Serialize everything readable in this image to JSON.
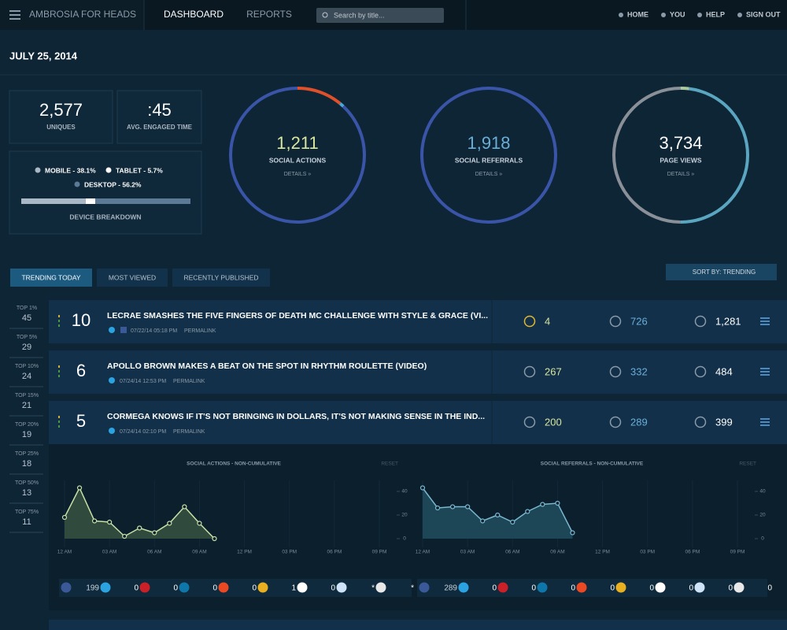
{
  "nav": {
    "brand": "AMBROSIA FOR HEADS",
    "tabs": [
      "DASHBOARD",
      "REPORTS"
    ],
    "search": "Search by title...",
    "links": [
      "HOME",
      "YOU",
      "HELP",
      "SIGN OUT"
    ]
  },
  "date": "JULY 25, 2014",
  "stats": [
    {
      "value": "2,577",
      "label": "UNIQUES"
    },
    {
      "value": ":45",
      "label": "AVG. ENGAGED TIME"
    }
  ],
  "device": {
    "title": "DEVICE BREAKDOWN",
    "items": [
      {
        "label": "MOBILE - 38.1%",
        "value": 38.1,
        "color": "#a9b8c6"
      },
      {
        "label": "TABLET - 5.7%",
        "value": 5.7,
        "color": "#ffffff"
      },
      {
        "label": "DESKTOP - 56.2%",
        "value": 56.2,
        "color": "#5c7a96"
      }
    ]
  },
  "rings": [
    {
      "value": "1,211",
      "label": "SOCIAL ACTIONS",
      "link": "DETAILS »",
      "color": "#d8e6a0",
      "segments": [
        {
          "value": 11,
          "color": "#e0502a"
        },
        {
          "value": 1,
          "color": "#4aa8d8"
        },
        {
          "value": 88,
          "color": "#3a55a8"
        }
      ]
    },
    {
      "value": "1,918",
      "label": "SOCIAL REFERRALS",
      "link": "DETAILS »",
      "color": "#6aaed8",
      "segments": [
        {
          "value": 100,
          "color": "#3a55a8"
        }
      ]
    },
    {
      "value": "3,734",
      "label": "PAGE VIEWS",
      "link": "DETAILS »",
      "color": "#ffffff",
      "segments": [
        {
          "value": 2,
          "color": "#a8c8a0"
        },
        {
          "value": 48,
          "color": "#5aa6c0"
        },
        {
          "value": 50,
          "color": "#8a9098"
        }
      ]
    }
  ],
  "tabs": [
    "TRENDING TODAY",
    "MOST VIEWED",
    "RECENTLY PUBLISHED"
  ],
  "sort": "SORT BY: TRENDING",
  "percentiles": [
    {
      "label": "TOP 1%",
      "value": 45
    },
    {
      "label": "TOP 5%",
      "value": 29
    },
    {
      "label": "TOP 10%",
      "value": 24
    },
    {
      "label": "TOP 15%",
      "value": 21
    },
    {
      "label": "TOP 20%",
      "value": 19
    },
    {
      "label": "TOP 25%",
      "value": 18
    },
    {
      "label": "TOP 50%",
      "value": 13
    },
    {
      "label": "TOP 75%",
      "value": 11
    }
  ],
  "articles": [
    {
      "rank": 10,
      "title": "LECRAE SMASHES THE FIVE FINGERS OF DEATH MC CHALLENGE WITH STYLE & GRACE (VI...",
      "date": "07/22/14 05:18 PM",
      "permalink": "PERMALINK",
      "metrics": [
        "4",
        "726",
        "1,281"
      ]
    },
    {
      "rank": 6,
      "title": "APOLLO BROWN MAKES A BEAT ON THE SPOT IN RHYTHM ROULETTE (VIDEO)",
      "date": "07/24/14 12:53 PM",
      "permalink": "PERMALINK",
      "metrics": [
        "267",
        "332",
        "484"
      ]
    },
    {
      "rank": 5,
      "title": "CORMEGA KNOWS IF IT'S NOT BRINGING IN DOLLARS, IT'S NOT MAKING SENSE IN THE IND...",
      "date": "07/24/14 02:10 PM",
      "permalink": "PERMALINK",
      "metrics": [
        "200",
        "289",
        "399"
      ]
    }
  ],
  "charts": [
    {
      "type": "line",
      "title": "SOCIAL ACTIONS - NON-CUMULATIVE",
      "reset": "RESET",
      "color": "#c8e0a8",
      "fill": "#34503f",
      "x": [
        0,
        1,
        2,
        3,
        4,
        5,
        6,
        7,
        8,
        9,
        10
      ],
      "values": [
        18,
        43,
        15,
        14,
        2,
        9,
        5,
        13,
        27,
        13,
        0
      ],
      "xlim": [
        0,
        21
      ],
      "xticks": [
        {
          "value": 0,
          "label": "12 AM"
        },
        {
          "value": 3,
          "label": "03 AM"
        },
        {
          "value": 6,
          "label": "06 AM"
        },
        {
          "value": 9,
          "label": "09 AM"
        },
        {
          "value": 12,
          "label": "12 PM"
        },
        {
          "value": 15,
          "label": "03 PM"
        },
        {
          "value": 18,
          "label": "06 PM"
        },
        {
          "value": 21,
          "label": "09 PM"
        }
      ],
      "ylim": [
        0,
        40
      ],
      "yticks": [
        0,
        20,
        40
      ]
    },
    {
      "type": "line",
      "title": "SOCIAL REFERRALS - NON-CUMULATIVE",
      "reset": "RESET",
      "color": "#7ab8d0",
      "fill": "#1f4a5c",
      "x": [
        0,
        1,
        2,
        3,
        4,
        5,
        6,
        7,
        8,
        9,
        10
      ],
      "values": [
        43,
        26,
        27,
        27,
        15,
        20,
        14,
        23,
        29,
        30,
        5
      ],
      "xlim": [
        0,
        21
      ],
      "xticks": [
        {
          "value": 0,
          "label": "12 AM"
        },
        {
          "value": 3,
          "label": "03 AM"
        },
        {
          "value": 6,
          "label": "06 AM"
        },
        {
          "value": 9,
          "label": "09 AM"
        },
        {
          "value": 12,
          "label": "12 PM"
        },
        {
          "value": 15,
          "label": "03 PM"
        },
        {
          "value": 18,
          "label": "06 PM"
        },
        {
          "value": 21,
          "label": "09 PM"
        }
      ],
      "ylim": [
        0,
        40
      ],
      "yticks": [
        0,
        20,
        40
      ]
    }
  ],
  "shares": [
    [
      {
        "color": "#3b5998",
        "value": "199"
      },
      {
        "color": "#2aa3e0",
        "value": "0"
      },
      {
        "color": "#cb2027",
        "value": "0"
      },
      {
        "color": "#0e76a8",
        "value": "0"
      },
      {
        "color": "#eb4924",
        "value": "0"
      },
      {
        "color": "#e8b020",
        "value": "1"
      },
      {
        "color": "#ffffff",
        "value": "0"
      },
      {
        "color": "#cee3f8",
        "value": "*"
      },
      {
        "color": "#e8e8e8",
        "value": "*"
      }
    ],
    [
      {
        "color": "#3b5998",
        "value": "289"
      },
      {
        "color": "#2aa3e0",
        "value": "0"
      },
      {
        "color": "#cb2027",
        "value": "0"
      },
      {
        "color": "#0e76a8",
        "value": "0"
      },
      {
        "color": "#eb4924",
        "value": "0"
      },
      {
        "color": "#e8b020",
        "value": "0"
      },
      {
        "color": "#ffffff",
        "value": "0"
      },
      {
        "color": "#cee3f8",
        "value": "0"
      },
      {
        "color": "#e8e8e8",
        "value": "0"
      }
    ]
  ]
}
